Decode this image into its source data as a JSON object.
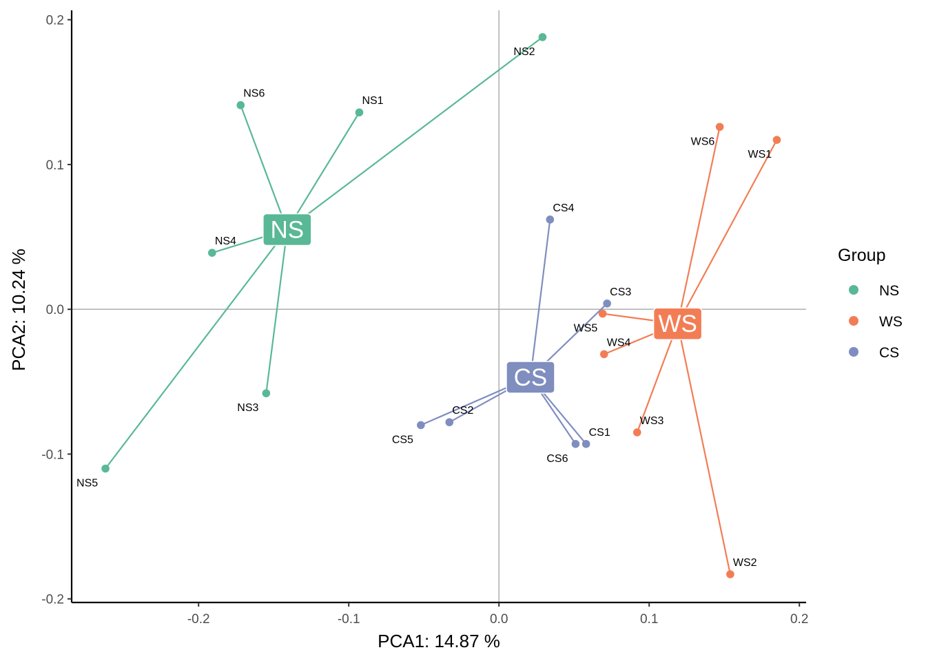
{
  "chart_data": {
    "type": "scatter",
    "xlabel": "PCA1:  14.87 %",
    "ylabel": "PCA2:  10.24 %",
    "xlim": [
      -0.2845,
      0.2045
    ],
    "ylim": [
      -0.2025,
      0.2065
    ],
    "x_ticks": [
      -0.2,
      -0.1,
      0.0,
      0.1,
      0.2
    ],
    "x_tick_labels": [
      "-0.2",
      "-0.1",
      "0.0",
      "0.1",
      "0.2"
    ],
    "y_ticks": [
      -0.2,
      -0.1,
      0.0,
      0.1,
      0.2
    ],
    "y_tick_labels": [
      "-0.2",
      "-0.1",
      "0.0",
      "0.1",
      "0.2"
    ],
    "reference_lines": {
      "x": 0,
      "y": 0,
      "color": "#b3b3b3"
    },
    "legend": {
      "title": "Group",
      "placement": "right",
      "entries": [
        {
          "label": "NS",
          "color": "#59b895"
        },
        {
          "label": "WS",
          "color": "#f27d55"
        },
        {
          "label": "CS",
          "color": "#7f8dbf"
        }
      ]
    },
    "series": [
      {
        "name": "NS",
        "color": "#59b895",
        "centroid": {
          "x": -0.141,
          "y": 0.055
        },
        "points": [
          {
            "label": "NS1",
            "x": -0.093,
            "y": 0.136,
            "label_pos": "above-right"
          },
          {
            "label": "NS2",
            "x": 0.029,
            "y": 0.188,
            "label_pos": "below-left"
          },
          {
            "label": "NS3",
            "x": -0.155,
            "y": -0.058,
            "label_pos": "below-left"
          },
          {
            "label": "NS4",
            "x": -0.191,
            "y": 0.039,
            "label_pos": "above-right"
          },
          {
            "label": "NS5",
            "x": -0.262,
            "y": -0.11,
            "label_pos": "below-left"
          },
          {
            "label": "NS6",
            "x": -0.172,
            "y": 0.141,
            "label_pos": "above-right"
          }
        ]
      },
      {
        "name": "WS",
        "color": "#f27d55",
        "centroid": {
          "x": 0.119,
          "y": -0.01
        },
        "points": [
          {
            "label": "WS1",
            "x": 0.185,
            "y": 0.117,
            "label_pos": "below-left"
          },
          {
            "label": "WS2",
            "x": 0.154,
            "y": -0.183,
            "label_pos": "above-right"
          },
          {
            "label": "WS3",
            "x": 0.092,
            "y": -0.085,
            "label_pos": "above-right"
          },
          {
            "label": "WS4",
            "x": 0.07,
            "y": -0.031,
            "label_pos": "above-right"
          },
          {
            "label": "WS5",
            "x": 0.069,
            "y": -0.003,
            "label_pos": "below-left"
          },
          {
            "label": "WS6",
            "x": 0.147,
            "y": 0.126,
            "label_pos": "below-left"
          }
        ]
      },
      {
        "name": "CS",
        "color": "#7f8dbf",
        "centroid": {
          "x": 0.021,
          "y": -0.047
        },
        "points": [
          {
            "label": "CS1",
            "x": 0.058,
            "y": -0.093,
            "label_pos": "above-right"
          },
          {
            "label": "CS2",
            "x": -0.033,
            "y": -0.078,
            "label_pos": "above-right"
          },
          {
            "label": "CS3",
            "x": 0.072,
            "y": 0.004,
            "label_pos": "above-right"
          },
          {
            "label": "CS4",
            "x": 0.034,
            "y": 0.062,
            "label_pos": "above-right"
          },
          {
            "label": "CS5",
            "x": -0.052,
            "y": -0.08,
            "label_pos": "below-left"
          },
          {
            "label": "CS6",
            "x": 0.051,
            "y": -0.093,
            "label_pos": "below-left"
          }
        ]
      }
    ]
  }
}
